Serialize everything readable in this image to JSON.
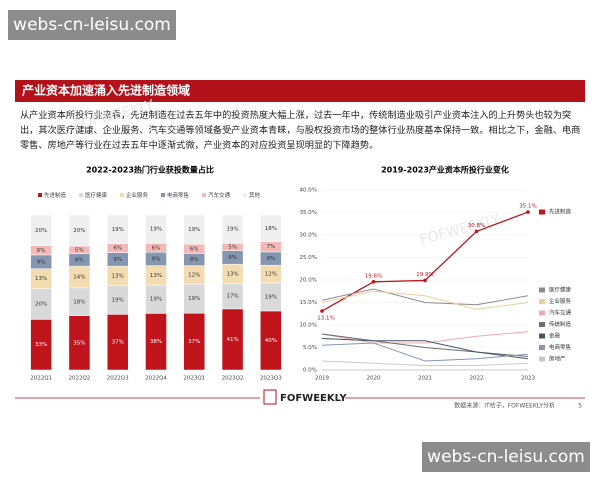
{
  "watermarks": [
    "webs-cn-leisu.com",
    "webs-cn-leisu.com"
  ],
  "header": {
    "title": "产业资本加速涌入先进制造领域"
  },
  "paragraph": "从产业资本所投行业来看，先进制造在过去五年中的投资热度大幅上涨，过去一年中，传统制造业吸引产业资本注入的上升势头也较为突出，其次医疗健康、企业服务、汽车交通等领域备受产业资本青睐，与股权投资市场的整体行业热度基本保持一致。相比之下，金融、电商零售、房地产等行业在过去五年中逐渐式微，产业资本的对应投资呈现明显的下降趋势。",
  "footer": {
    "logo": "FOFWEEKLY",
    "source": "数据来源：IT桔子，FOFWEEKLY分析",
    "page": "5",
    "chart_watermark": "FOFWEEKLY"
  },
  "chart_data": [
    {
      "type": "stacked_bar",
      "title": "2022-2023热门行业获投数量占比",
      "categories": [
        "2022Q1",
        "2022Q2",
        "2022Q3",
        "2022Q4",
        "2023Q1",
        "2023Q2",
        "2023Q3"
      ],
      "series": [
        {
          "name": "先进制造",
          "color": "#c0141c",
          "values": [
            33,
            35,
            37,
            38,
            37,
            41,
            40
          ],
          "value_labels": [
            "33%",
            "35%",
            "37%",
            "38%",
            "37%",
            "41%",
            "40%"
          ]
        },
        {
          "name": "医疗健康",
          "color": "#d9d9d9",
          "values": [
            20,
            18,
            19,
            19,
            19,
            17,
            19
          ],
          "value_labels": [
            "20%",
            "18%",
            "19%",
            "19%",
            "19%",
            "17%",
            "19%"
          ]
        },
        {
          "name": "企业服务",
          "color": "#f3dcb2",
          "values": [
            13,
            14,
            13,
            13,
            12,
            13,
            12
          ],
          "value_labels": [
            "13%",
            "14%",
            "13%",
            "13%",
            "12%",
            "13%",
            "12%"
          ]
        },
        {
          "name": "电商零售",
          "color": "#8496b0",
          "values": [
            9,
            8,
            9,
            9,
            8,
            9,
            9
          ],
          "value_labels": [
            "9%",
            "8%",
            "9%",
            "9%",
            "8%",
            "9%",
            "9%"
          ]
        },
        {
          "name": "汽车交通",
          "color": "#f4b8b8",
          "values": [
            6,
            5,
            6,
            6,
            6,
            5,
            7
          ],
          "value_labels": [
            "6%",
            "5%",
            "6%",
            "6%",
            "6%",
            "5%",
            "7%"
          ]
        },
        {
          "name": "其他",
          "color": "#efefef",
          "values": [
            20,
            20,
            19,
            19,
            19,
            19,
            18
          ],
          "value_labels": [
            "20%",
            "20%",
            "19%",
            "19%",
            "19%",
            "19%",
            "18%"
          ]
        }
      ]
    },
    {
      "type": "line",
      "title": "2019-2023产业资本所投行业变化",
      "categories": [
        "2019",
        "2020",
        "2021",
        "2022",
        "2023"
      ],
      "ylim": [
        0,
        40
      ],
      "yticks": [
        {
          "value": 0,
          "label": "0.0%"
        },
        {
          "value": 5,
          "label": "5.0%"
        },
        {
          "value": 10,
          "label": "10.0%"
        },
        {
          "value": 15,
          "label": "15.0%"
        },
        {
          "value": 20,
          "label": "20.0%"
        },
        {
          "value": 25,
          "label": "25.0%"
        },
        {
          "value": 30,
          "label": "30.0%"
        },
        {
          "value": 35,
          "label": "35.0%"
        },
        {
          "value": 40,
          "label": "40.0%"
        }
      ],
      "series": [
        {
          "name": "先进制造",
          "color": "#c0141c",
          "values": [
            13.1,
            19.6,
            19.9,
            30.8,
            35.1
          ],
          "value_labels": [
            "13.1%",
            "19.6%",
            "19.9%",
            "30.8%",
            "35.1%"
          ]
        },
        {
          "name": "医疗健康",
          "color": "#8c8c8c",
          "values": [
            15.5,
            18,
            15,
            14.5,
            16.5
          ]
        },
        {
          "name": "企业服务",
          "color": "#e8cfa0",
          "values": [
            15,
            17.5,
            16.5,
            13.5,
            15
          ]
        },
        {
          "name": "汽车交通",
          "color": "#f0a8a8",
          "values": [
            8,
            6,
            6,
            7.5,
            8.5
          ]
        },
        {
          "name": "传统制造",
          "color": "#6e6e6e",
          "values": [
            8,
            6.5,
            5,
            4,
            3
          ]
        },
        {
          "name": "金融",
          "color": "#44546a",
          "values": [
            7,
            6.5,
            6.5,
            4,
            2.5
          ]
        },
        {
          "name": "电商零售",
          "color": "#8496b0",
          "values": [
            5.5,
            6,
            2,
            2.5,
            3.5
          ]
        },
        {
          "name": "房地产",
          "color": "#c8c8c8",
          "values": [
            2,
            1.5,
            1,
            1,
            1.5
          ]
        }
      ]
    }
  ]
}
